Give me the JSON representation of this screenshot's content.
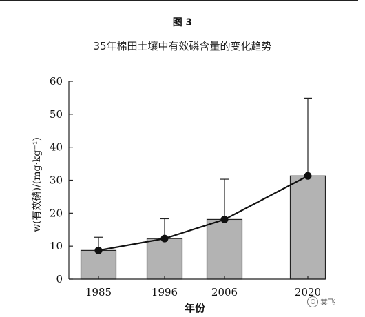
{
  "figure": {
    "label": "图 3",
    "title": "35年棉田土壤中有效磷含量的变化趋势"
  },
  "watermark": {
    "text": "棠飞"
  },
  "chart_data": {
    "type": "bar",
    "categories": [
      "1985",
      "1996",
      "2006",
      "2020"
    ],
    "values": [
      8.7,
      12.3,
      18.1,
      31.3
    ],
    "error_upper": [
      12.7,
      18.3,
      30.3,
      54.9
    ],
    "line_overlay": true,
    "xlabel": "年份",
    "ylabel": "w(有效磷)/(mg·kg⁻¹)",
    "ylim": [
      0,
      60
    ],
    "yticks": [
      0,
      10,
      20,
      30,
      40,
      50,
      60
    ],
    "grid": false,
    "bar_color": "#b3b3b3",
    "line_color": "#111111"
  }
}
